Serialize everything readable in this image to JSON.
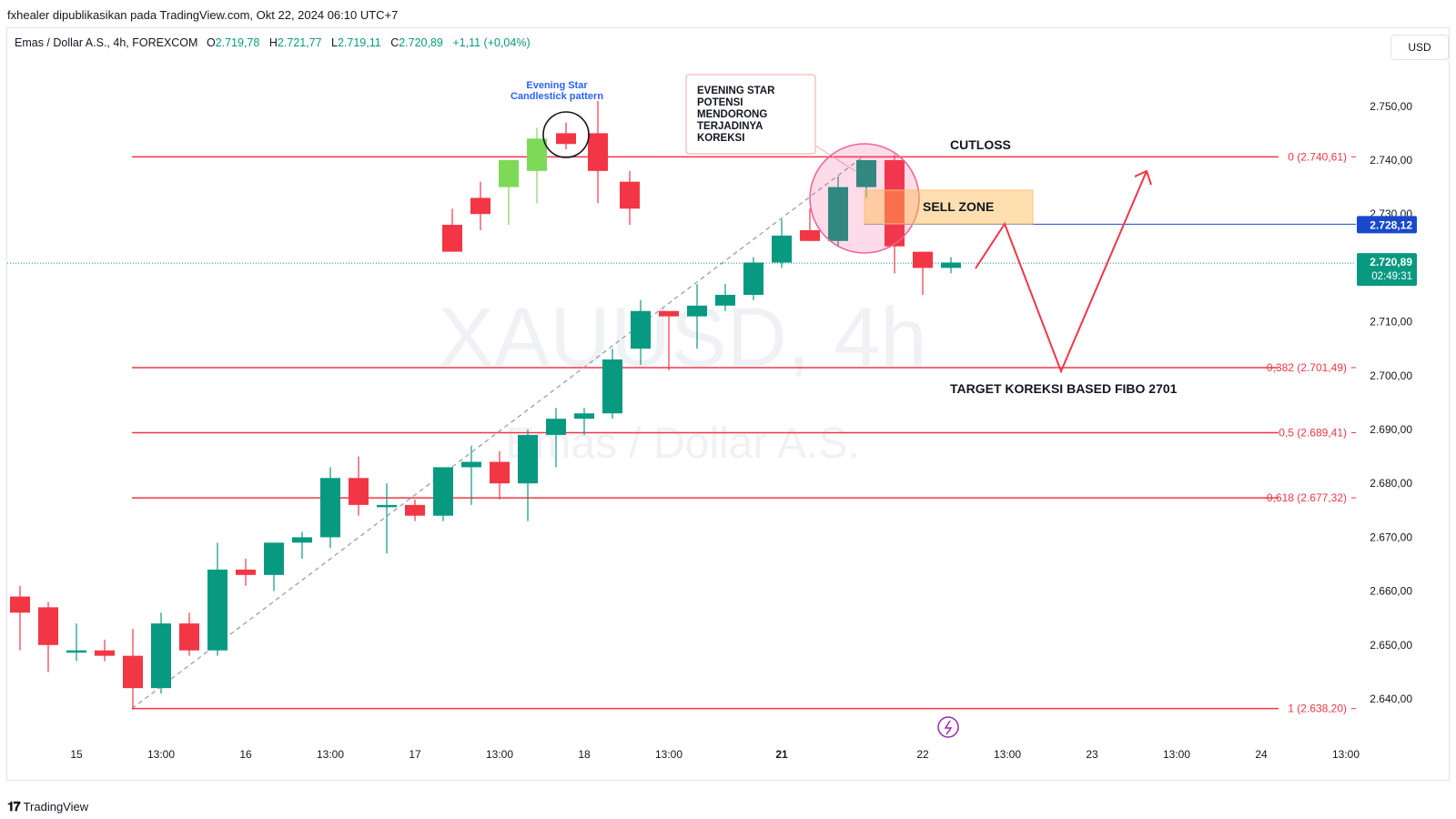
{
  "header": {
    "publisher": "fxhealer dipublikasikan pada TradingView.com, Okt 22, 2024 06:10 UTC+7"
  },
  "legend": {
    "symbol": "Emas / Dollar A.S., 4h, FOREXCOM",
    "open_k": "O",
    "open": "2.719,78",
    "high_k": "H",
    "high": "2.721,77",
    "low_k": "L",
    "low": "2.719,11",
    "close_k": "C",
    "close": "2.720,89",
    "change": "+1,11 (+0,04%)"
  },
  "currency_button": "USD",
  "watermark": {
    "symbol": "XAUUSD, 4h",
    "name": "Emas / Dollar A.S."
  },
  "footer": {
    "logo": "𝟏𝟕",
    "brand": "TradingView"
  },
  "colors": {
    "up": "#089981",
    "down": "#f23645",
    "up_light": "#7ed957",
    "fib": "#f23645",
    "price_tag": "#1848cc"
  },
  "chart_data": {
    "type": "candlestick",
    "ylim": [
      2632,
      2758
    ],
    "y_ticks": [
      "2.640,00",
      "2.650,00",
      "2.660,00",
      "2.670,00",
      "2.680,00",
      "2.690,00",
      "2.700,00",
      "2.710,00",
      "2.720,00",
      "2.730,00",
      "2.740,00",
      "2.750,00"
    ],
    "y_tick_values": [
      2640,
      2650,
      2660,
      2670,
      2680,
      2690,
      2700,
      2710,
      2720,
      2730,
      2740,
      2750
    ],
    "x_ticks": [
      {
        "i": 2,
        "label": "15"
      },
      {
        "i": 5,
        "label": "13:00"
      },
      {
        "i": 8,
        "label": "16"
      },
      {
        "i": 11,
        "label": "13:00"
      },
      {
        "i": 14,
        "label": "17"
      },
      {
        "i": 17,
        "label": "13:00"
      },
      {
        "i": 20,
        "label": "18"
      },
      {
        "i": 23,
        "label": "13:00"
      },
      {
        "i": 27,
        "label": "21"
      },
      {
        "i": 32,
        "label": "22"
      },
      {
        "i": 35,
        "label": "13:00"
      },
      {
        "i": 38,
        "label": "23"
      },
      {
        "i": 41,
        "label": "13:00"
      },
      {
        "i": 44,
        "label": "24"
      },
      {
        "i": 47,
        "label": "13:00"
      }
    ],
    "x_tick_bold": [
      "21"
    ],
    "candles": [
      {
        "i": 0,
        "o": 2659,
        "h": 2661,
        "l": 2649,
        "c": 2656
      },
      {
        "i": 1,
        "o": 2657,
        "h": 2658,
        "l": 2645,
        "c": 2650
      },
      {
        "i": 2,
        "o": 2649,
        "h": 2654,
        "l": 2647,
        "c": 2649
      },
      {
        "i": 3,
        "o": 2649,
        "h": 2651,
        "l": 2647,
        "c": 2648
      },
      {
        "i": 4,
        "o": 2648,
        "h": 2653,
        "l": 2638,
        "c": 2642
      },
      {
        "i": 5,
        "o": 2642,
        "h": 2656,
        "l": 2641,
        "c": 2654
      },
      {
        "i": 6,
        "o": 2654,
        "h": 2656,
        "l": 2648,
        "c": 2649
      },
      {
        "i": 7,
        "o": 2649,
        "h": 2669,
        "l": 2648,
        "c": 2664
      },
      {
        "i": 8,
        "o": 2664,
        "h": 2666,
        "l": 2661,
        "c": 2663
      },
      {
        "i": 9,
        "o": 2663,
        "h": 2668,
        "l": 2660,
        "c": 2669
      },
      {
        "i": 10,
        "o": 2669,
        "h": 2671,
        "l": 2666,
        "c": 2670
      },
      {
        "i": 11,
        "o": 2670,
        "h": 2683,
        "l": 2668,
        "c": 2681
      },
      {
        "i": 12,
        "o": 2681,
        "h": 2685,
        "l": 2674,
        "c": 2676
      },
      {
        "i": 13,
        "o": 2676,
        "h": 2680,
        "l": 2667,
        "c": 2676
      },
      {
        "i": 14,
        "o": 2676,
        "h": 2677,
        "l": 2673,
        "c": 2674
      },
      {
        "i": 15,
        "o": 2674,
        "h": 2683,
        "l": 2673,
        "c": 2683
      },
      {
        "i": 16,
        "o": 2683,
        "h": 2687,
        "l": 2676,
        "c": 2684
      },
      {
        "i": 17,
        "o": 2684,
        "h": 2686,
        "l": 2677,
        "c": 2680
      },
      {
        "i": 18,
        "o": 2680,
        "h": 2690,
        "l": 2673,
        "c": 2689
      },
      {
        "i": 19,
        "o": 2689,
        "h": 2694,
        "l": 2683,
        "c": 2692
      },
      {
        "i": 20,
        "o": 2692,
        "h": 2694,
        "l": 2689,
        "c": 2693
      },
      {
        "i": 21,
        "o": 2693,
        "h": 2705,
        "l": 2692,
        "c": 2703
      },
      {
        "i": 22,
        "o": 2705,
        "h": 2714,
        "l": 2702,
        "c": 2712
      },
      {
        "i": 23,
        "o": 2712,
        "h": 2711,
        "l": 2701,
        "c": 2711
      },
      {
        "i": 24,
        "o": 2711,
        "h": 2717,
        "l": 2705,
        "c": 2713
      },
      {
        "i": 25,
        "o": 2713,
        "h": 2717,
        "l": 2712,
        "c": 2715
      },
      {
        "i": 26,
        "o": 2715,
        "h": 2722,
        "l": 2714,
        "c": 2721
      },
      {
        "i": 27,
        "o": 2721,
        "h": 2729,
        "l": 2720,
        "c": 2726
      },
      {
        "i": 28,
        "o": 2727,
        "h": 2731,
        "l": 2725,
        "c": 2725
      },
      {
        "i": 29,
        "o": 2725,
        "h": 2737,
        "l": 2724,
        "c": 2735
      },
      {
        "i": 30,
        "o": 2735,
        "h": 2740,
        "l": 2733,
        "c": 2740
      },
      {
        "i": 31,
        "o": 2740,
        "h": 2741,
        "l": 2719,
        "c": 2724
      },
      {
        "i": 32,
        "o": 2723,
        "h": 2723,
        "l": 2715,
        "c": 2720
      },
      {
        "i": 33,
        "o": 2720,
        "h": 2722,
        "l": 2719,
        "c": 2721
      }
    ],
    "highlight_candles": [
      {
        "i": 15.5,
        "o": 2728,
        "h": 2731,
        "l": 2725,
        "c": 2723,
        "x_override": 497
      },
      {
        "i": 16.5,
        "o": 2733,
        "h": 2736,
        "l": 2727,
        "c": 2730,
        "x_override": 528
      },
      {
        "i": 17.5,
        "o": 2735,
        "h": 2739,
        "l": 2728,
        "c": 2740,
        "x_override": 559
      },
      {
        "i": 18.5,
        "o": 2738,
        "h": 2746,
        "l": 2732,
        "c": 2744,
        "x_override": 590
      },
      {
        "i": 19.5,
        "o": 2745,
        "h": 2747,
        "l": 2742,
        "c": 2743,
        "x_override": 622
      },
      {
        "i": 20.5,
        "o": 2745,
        "h": 2751,
        "l": 2732,
        "c": 2738,
        "x_override": 657
      },
      {
        "i": 21.5,
        "o": 2736,
        "h": 2738,
        "l": 2728,
        "c": 2731,
        "x_override": 692
      }
    ],
    "fib_levels": [
      {
        "value": 2740.61,
        "label": "0 (2.740,61)"
      },
      {
        "value": 2701.49,
        "label": "0,382 (2.701,49)"
      },
      {
        "value": 2689.41,
        "label": "0,5 (2.689,41)"
      },
      {
        "value": 2677.32,
        "label": "0,618 (2.677,32)"
      },
      {
        "value": 2638.2,
        "label": "1 (2.638,20)"
      }
    ],
    "current_price": {
      "value": 2720.89,
      "label": "2.720,89",
      "countdown": "02:49:31"
    },
    "price_line": {
      "value": 2728.12,
      "label": "2.728,12"
    },
    "annotations": {
      "evening_star_title": "Evening Star",
      "evening_star_sub": "Candlestick pattern",
      "callout": [
        "EVENING STAR",
        "POTENSI",
        "MENDORONG",
        "TERJADINYA",
        "KOREKSI"
      ],
      "cutloss": "CUTLOSS",
      "sell_zone": "SELL ZONE",
      "target": "TARGET KOREKSI BASED FIBO 2701"
    }
  }
}
